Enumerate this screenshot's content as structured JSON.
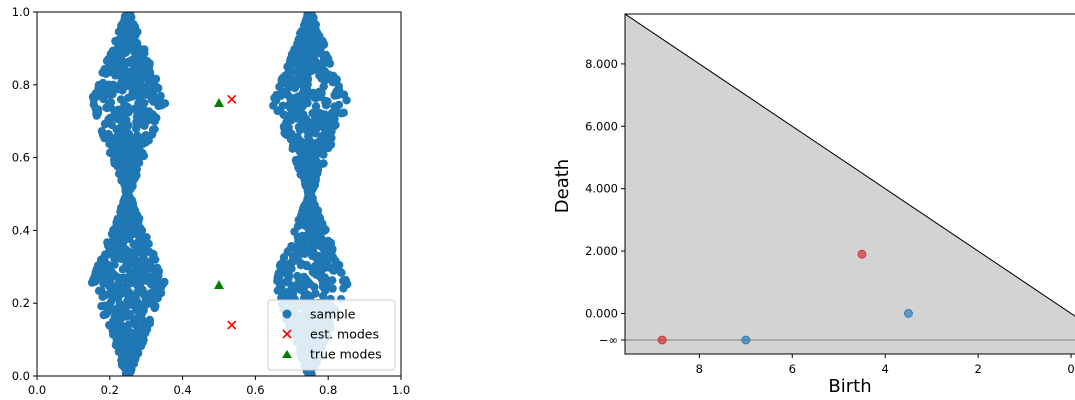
{
  "chart_data": [
    {
      "type": "scatter",
      "xlim": [
        0.0,
        1.0
      ],
      "ylim": [
        0.0,
        1.0
      ],
      "x_ticks": [
        "0.0",
        "0.2",
        "0.4",
        "0.6",
        "0.8",
        "1.0"
      ],
      "y_ticks": [
        "0.0",
        "0.2",
        "0.4",
        "0.6",
        "0.8",
        "1.0"
      ],
      "grid": false,
      "legend_position": "bottom-right",
      "colors": {
        "sample": "#1f77b4",
        "est_modes": "#ff0000",
        "true_modes": "#008000"
      },
      "sample_shape": {
        "description_values": "two bow-tie clouds, x in [0.15,0.85], y in [0,1]",
        "lobes": [
          {
            "cx": 0.25,
            "cy": 0.75,
            "halfwidth": 0.1,
            "halfheight": 0.25
          },
          {
            "cx": 0.75,
            "cy": 0.75,
            "halfwidth": 0.1,
            "halfheight": 0.25
          },
          {
            "cx": 0.25,
            "cy": 0.25,
            "halfwidth": 0.1,
            "halfheight": 0.25
          },
          {
            "cx": 0.75,
            "cy": 0.25,
            "halfwidth": 0.1,
            "halfheight": 0.25
          }
        ]
      },
      "series": [
        {
          "name": "sample",
          "marker": "circle",
          "values": "dense filled cloud"
        },
        {
          "name": "est. modes",
          "marker": "x",
          "points": [
            [
              0.535,
              0.76
            ],
            [
              0.535,
              0.14
            ]
          ]
        },
        {
          "name": "true modes",
          "marker": "triangle",
          "points": [
            [
              0.5,
              0.75
            ],
            [
              0.5,
              0.25
            ]
          ]
        }
      ]
    },
    {
      "type": "scatter",
      "subtype": "persistence_diagram",
      "xlabel": "Birth",
      "ylabel": "Death",
      "xlim": [
        9.6,
        -0.3
      ],
      "ylim": [
        -1.3,
        9.6
      ],
      "x_ticks": [
        "8",
        "6",
        "4",
        "2",
        "0"
      ],
      "y_ticks": [
        "−∞",
        "0.000",
        "2.000",
        "4.000",
        "6.000",
        "8.000"
      ],
      "inf_level": -0.85,
      "diagonal_fill": "#d3d3d3",
      "grid": false,
      "points": [
        {
          "birth": 8.8,
          "death": "-inf",
          "color": "#d62728"
        },
        {
          "birth": 7.0,
          "death": "-inf",
          "color": "#1f77b4"
        },
        {
          "birth": 3.5,
          "death": 0.0,
          "color": "#1f77b4"
        },
        {
          "birth": 4.5,
          "death": 1.9,
          "color": "#d62728"
        }
      ]
    }
  ],
  "legend": {
    "sample": "sample",
    "est": "est. modes",
    "true": "true modes"
  }
}
